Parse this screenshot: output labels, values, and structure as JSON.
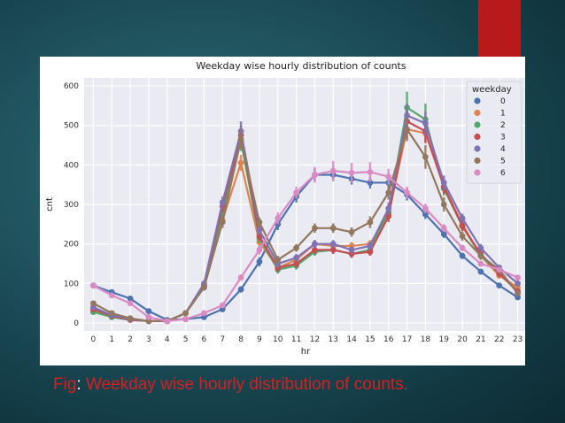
{
  "caption": {
    "prefix": "Fig",
    "colon": ":",
    "text": " Weekday wise hourly distribution of counts."
  },
  "colors": {
    "accent_red": "#b8191b",
    "caption_red": "#d42020",
    "plot_bg": "#eaeaf2"
  },
  "chart_data": {
    "type": "line",
    "title": "Weekday wise hourly distribution of counts",
    "xlabel": "hr",
    "ylabel": "cnt",
    "ylim": [
      -20,
      620
    ],
    "yticks": [
      0,
      100,
      200,
      300,
      400,
      500,
      600
    ],
    "grid": true,
    "legend": {
      "title": "weekday",
      "placement": "top-right"
    },
    "categories": [
      "0",
      "1",
      "2",
      "3",
      "4",
      "5",
      "6",
      "7",
      "8",
      "9",
      "10",
      "11",
      "12",
      "13",
      "14",
      "15",
      "16",
      "17",
      "18",
      "19",
      "20",
      "21",
      "22",
      "23"
    ],
    "series": [
      {
        "name": "0",
        "color": "#4c72b0",
        "values": [
          95,
          78,
          62,
          30,
          8,
          10,
          15,
          35,
          85,
          155,
          250,
          320,
          375,
          375,
          365,
          355,
          355,
          325,
          275,
          225,
          170,
          130,
          95,
          65
        ],
        "err": [
          6,
          5,
          5,
          4,
          2,
          2,
          3,
          5,
          8,
          12,
          15,
          15,
          16,
          16,
          15,
          15,
          15,
          15,
          12,
          10,
          8,
          7,
          6,
          5
        ]
      },
      {
        "name": "1",
        "color": "#dd8452",
        "values": [
          30,
          18,
          10,
          5,
          5,
          25,
          90,
          260,
          405,
          205,
          140,
          160,
          200,
          195,
          195,
          200,
          275,
          490,
          480,
          345,
          250,
          170,
          120,
          90
        ],
        "err": [
          4,
          3,
          2,
          2,
          2,
          3,
          8,
          15,
          20,
          12,
          10,
          10,
          10,
          10,
          10,
          10,
          15,
          25,
          25,
          18,
          12,
          10,
          8,
          6
        ]
      },
      {
        "name": "2",
        "color": "#55a868",
        "values": [
          28,
          15,
          8,
          5,
          5,
          25,
          95,
          280,
          460,
          215,
          135,
          145,
          180,
          185,
          175,
          185,
          280,
          545,
          515,
          340,
          245,
          170,
          125,
          80
        ],
        "err": [
          4,
          3,
          2,
          2,
          2,
          3,
          8,
          15,
          25,
          12,
          10,
          10,
          10,
          10,
          10,
          10,
          15,
          40,
          40,
          18,
          12,
          10,
          8,
          6
        ]
      },
      {
        "name": "3",
        "color": "#c44e52",
        "values": [
          35,
          18,
          8,
          5,
          5,
          25,
          95,
          295,
          475,
          220,
          140,
          150,
          185,
          185,
          175,
          180,
          270,
          510,
          485,
          345,
          245,
          175,
          125,
          80
        ],
        "err": [
          4,
          3,
          2,
          2,
          2,
          3,
          8,
          15,
          25,
          12,
          10,
          10,
          10,
          10,
          10,
          10,
          15,
          30,
          30,
          18,
          12,
          10,
          8,
          6
        ]
      },
      {
        "name": "4",
        "color": "#8172b3",
        "values": [
          40,
          20,
          10,
          5,
          5,
          25,
          100,
          305,
          485,
          235,
          150,
          165,
          200,
          200,
          185,
          195,
          290,
          525,
          505,
          355,
          265,
          190,
          140,
          100
        ],
        "err": [
          4,
          3,
          2,
          2,
          2,
          3,
          8,
          15,
          25,
          12,
          10,
          10,
          10,
          10,
          10,
          10,
          15,
          30,
          30,
          18,
          12,
          10,
          8,
          6
        ]
      },
      {
        "name": "5",
        "color": "#937860",
        "values": [
          50,
          25,
          12,
          5,
          5,
          25,
          90,
          255,
          465,
          255,
          160,
          190,
          240,
          240,
          230,
          255,
          330,
          490,
          420,
          300,
          220,
          170,
          135,
          75
        ],
        "err": [
          5,
          4,
          3,
          2,
          2,
          3,
          8,
          15,
          25,
          12,
          10,
          10,
          12,
          12,
          12,
          15,
          18,
          30,
          30,
          18,
          12,
          10,
          8,
          6
        ]
      },
      {
        "name": "6",
        "color": "#da8bc3",
        "values": [
          95,
          70,
          50,
          15,
          5,
          10,
          25,
          45,
          115,
          185,
          265,
          330,
          375,
          385,
          380,
          382,
          370,
          330,
          290,
          240,
          190,
          150,
          135,
          115
        ],
        "err": [
          6,
          5,
          5,
          3,
          2,
          2,
          3,
          5,
          8,
          12,
          15,
          15,
          20,
          25,
          25,
          25,
          20,
          15,
          12,
          10,
          8,
          7,
          6,
          5
        ]
      }
    ]
  }
}
